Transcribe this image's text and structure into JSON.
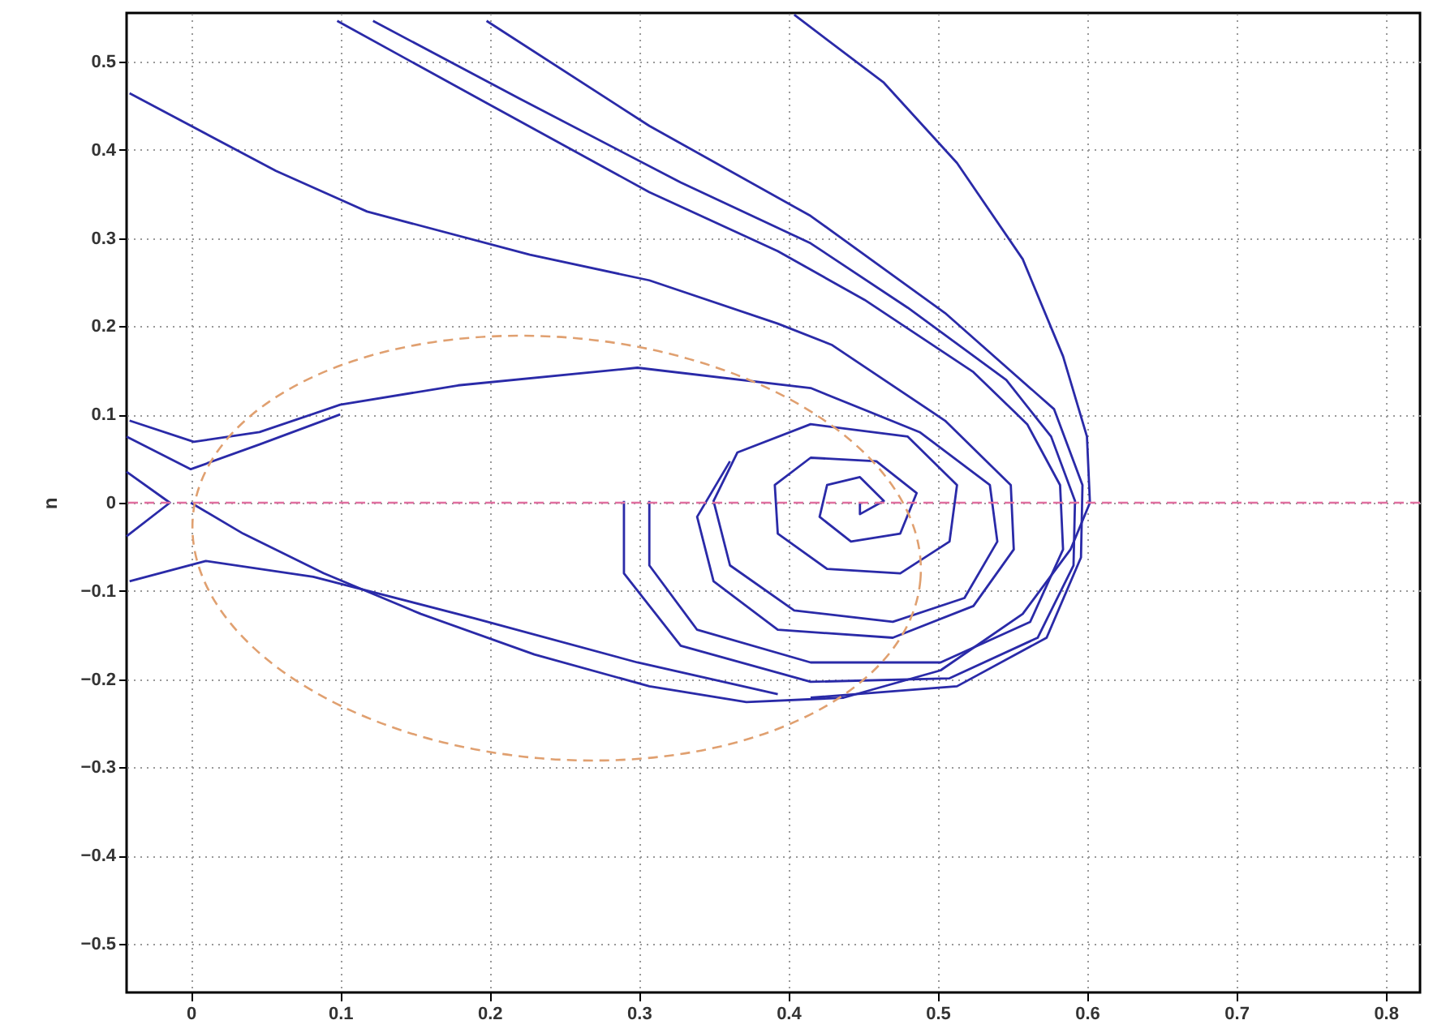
{
  "chart_data": {
    "type": "line",
    "ylabel": "n",
    "xlim": [
      -0.043,
      0.823
    ],
    "ylim": [
      -0.555,
      0.555
    ],
    "xticks": [
      0,
      0.1,
      0.2,
      0.3,
      0.4,
      0.5,
      0.6,
      0.7,
      0.8
    ],
    "yticks": [
      -0.5,
      -0.4,
      -0.3,
      -0.2,
      -0.1,
      0,
      0.1,
      0.2,
      0.3,
      0.4,
      0.5
    ],
    "grid": true,
    "marker": "none",
    "ref_lines": [
      {
        "axis": "y",
        "value": 0,
        "color": "#e070a0",
        "line_style": "dashed"
      }
    ],
    "series": [
      {
        "color": "#2a2aa8",
        "x": [
          0,
          0.035,
          0.089,
          0.154,
          0.23,
          0.307,
          0.372,
          0.437,
          0.502,
          0.557,
          0.589,
          0.602,
          0.6,
          0.584,
          0.557,
          0.513,
          0.464,
          0.404
        ],
        "values": [
          0,
          -0.035,
          -0.08,
          -0.126,
          -0.172,
          -0.208,
          -0.226,
          -0.221,
          -0.19,
          -0.126,
          -0.053,
          0,
          0.075,
          0.166,
          0.276,
          0.385,
          0.476,
          0.553
        ]
      },
      {
        "color": "#2a2aa8",
        "x": [
          -0.041,
          0.002,
          0.046,
          0.1,
          0.179,
          0.299,
          0.415,
          0.488,
          0.535,
          0.54,
          0.518,
          0.47,
          0.404,
          0.361,
          0.35,
          0.366,
          0.415,
          0.48,
          0.513,
          0.508,
          0.475,
          0.426,
          0.393,
          0.391,
          0.415,
          0.459,
          0.486,
          0.475,
          0.442,
          0.421,
          0.426,
          0.448,
          0.464,
          0.448,
          0.448
        ],
        "values": [
          0.093,
          0.069,
          0.08,
          0.111,
          0.133,
          0.153,
          0.13,
          0.08,
          0.02,
          -0.044,
          -0.108,
          -0.135,
          -0.122,
          -0.071,
          0.002,
          0.057,
          0.089,
          0.075,
          0.02,
          -0.044,
          -0.08,
          -0.075,
          -0.035,
          0.02,
          0.051,
          0.047,
          0.011,
          -0.035,
          -0.044,
          -0.016,
          0.02,
          0.029,
          0.002,
          -0.013,
          0
        ]
      },
      {
        "color": "#2a2aa8",
        "x": [
          -0.041,
          0.057,
          0.118,
          0.227,
          0.307,
          0.393,
          0.429,
          0.505,
          0.549,
          0.551,
          0.524,
          0.47,
          0.393,
          0.35,
          0.339,
          0.361
        ],
        "values": [
          0.464,
          0.376,
          0.33,
          0.281,
          0.252,
          0.203,
          0.179,
          0.093,
          0.02,
          -0.053,
          -0.117,
          -0.153,
          -0.144,
          -0.089,
          -0.016,
          0.047
        ]
      },
      {
        "color": "#2a2aa8",
        "x": [
          0.098,
          0.198,
          0.307,
          0.393,
          0.451,
          0.524,
          0.56,
          0.582,
          0.584,
          0.562,
          0.502,
          0.415,
          0.339,
          0.307,
          0.307
        ],
        "values": [
          0.546,
          0.453,
          0.352,
          0.285,
          0.23,
          0.148,
          0.089,
          0.02,
          -0.053,
          -0.135,
          -0.181,
          -0.181,
          -0.144,
          -0.071,
          0.002
        ]
      },
      {
        "color": "#2a2aa8",
        "x": [
          0.122,
          0.22,
          0.328,
          0.415,
          0.48,
          0.546,
          0.576,
          0.592,
          0.591,
          0.567,
          0.508,
          0.415,
          0.328,
          0.29,
          0.29
        ],
        "values": [
          0.546,
          0.458,
          0.363,
          0.294,
          0.221,
          0.139,
          0.075,
          0.002,
          -0.071,
          -0.153,
          -0.199,
          -0.203,
          -0.162,
          -0.08,
          0.002
        ]
      },
      {
        "color": "#2a2aa8",
        "x": [
          0.198,
          0.307,
          0.415,
          0.505,
          0.578,
          0.597,
          0.596,
          0.573,
          0.513,
          0.415
        ],
        "values": [
          0.546,
          0.427,
          0.325,
          0.215,
          0.106,
          0.02,
          -0.062,
          -0.153,
          -0.208,
          -0.221
        ]
      },
      {
        "color": "#2a2aa8",
        "x": [
          -0.041,
          0.01,
          0.082,
          0.19,
          0.299,
          0.393
        ],
        "values": [
          -0.089,
          -0.066,
          -0.084,
          -0.131,
          -0.181,
          -0.217
        ]
      },
      {
        "color": "#2a2aa8",
        "x": [
          -0.043,
          -0.014,
          -0.043
        ],
        "values": [
          0.035,
          0,
          -0.038
        ]
      },
      {
        "color": "#2a2aa8",
        "x": [
          -0.043,
          0,
          0.046,
          0.1
        ],
        "values": [
          0.075,
          0.038,
          0.066,
          0.1
        ]
      }
    ]
  }
}
